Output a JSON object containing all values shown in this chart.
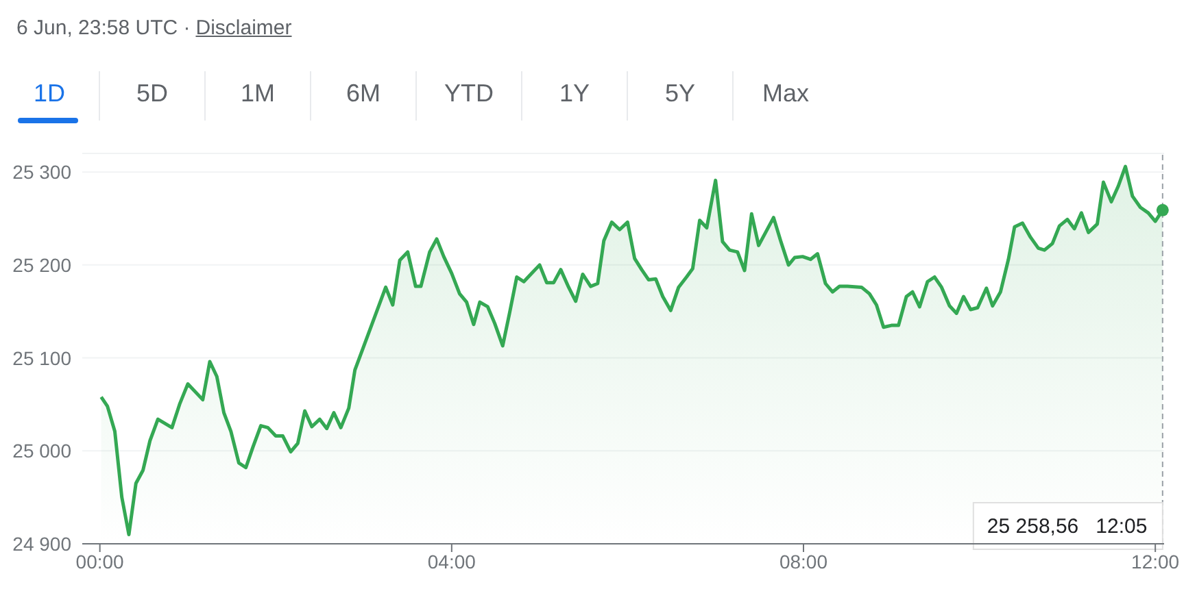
{
  "chart_data": {
    "type": "area",
    "title": "6 Jun, 23:58 UTC ·",
    "annotations": [
      "Disclaimer",
      "1D",
      "5D",
      "1M",
      "6M",
      "YTD",
      "1Y",
      "5Y",
      "Max",
      "25 258,56   12:05"
    ],
    "ref_lines": [
      {
        "axis": "x",
        "value": 12.083,
        "label": null,
        "line_style": "dashed",
        "color": "#9aa0a6"
      }
    ],
    "series": [
      {
        "color": "#34a853",
        "x": [
          0.015,
          0.086,
          0.17,
          0.25,
          0.33,
          0.41,
          0.49,
          0.57,
          0.66,
          0.82,
          0.91,
          1.0,
          1.17,
          1.25,
          1.33,
          1.41,
          1.49,
          1.58,
          1.66,
          1.74,
          1.83,
          1.91,
          2.0,
          2.08,
          2.17,
          2.25,
          2.33,
          2.41,
          2.5,
          2.58,
          2.66,
          2.74,
          2.83,
          2.9,
          3.25,
          3.33,
          3.41,
          3.5,
          3.59,
          3.65,
          3.75,
          3.83,
          3.91,
          4.0,
          4.09,
          4.17,
          4.25,
          4.32,
          4.41,
          4.49,
          4.58,
          4.66,
          4.74,
          4.82,
          4.91,
          5.0,
          5.08,
          5.16,
          5.24,
          5.33,
          5.41,
          5.49,
          5.58,
          5.66,
          5.73,
          5.82,
          5.91,
          6.0,
          6.08,
          6.16,
          6.24,
          6.32,
          6.4,
          6.49,
          6.58,
          6.67,
          6.74,
          6.82,
          6.9,
          7.0,
          7.08,
          7.16,
          7.25,
          7.33,
          7.41,
          7.49,
          7.66,
          7.74,
          7.83,
          7.9,
          7.99,
          8.08,
          8.16,
          8.25,
          8.33,
          8.41,
          8.5,
          8.66,
          8.75,
          8.83,
          8.91,
          9.0,
          9.08,
          9.17,
          9.24,
          9.32,
          9.41,
          9.49,
          9.57,
          9.66,
          9.74,
          9.82,
          9.9,
          9.98,
          10.08,
          10.15,
          10.24,
          10.33,
          10.4,
          10.49,
          10.58,
          10.67,
          10.74,
          10.83,
          10.91,
          11.0,
          11.08,
          11.16,
          11.24,
          11.34,
          11.41,
          11.5,
          11.58,
          11.66,
          11.74,
          11.83,
          11.92,
          12.0,
          12.083
        ],
        "values": [
          25058,
          25048,
          25021,
          24950,
          24910,
          24965,
          24979,
          25011,
          25034,
          25025,
          25051,
          25072,
          25055,
          25096,
          25080,
          25041,
          25021,
          24987,
          24982,
          25004,
          25027,
          25025,
          25016,
          25016,
          24999,
          25008,
          25043,
          25026,
          25034,
          25024,
          25041,
          25025,
          25046,
          25087,
          25176,
          25157,
          25205,
          25214,
          25177,
          25177,
          25214,
          25228,
          25209,
          25191,
          25169,
          25160,
          25136,
          25160,
          25155,
          25137,
          25113,
          25149,
          25187,
          25182,
          25191,
          25200,
          25181,
          25181,
          25195,
          25176,
          25161,
          25190,
          25177,
          25180,
          25226,
          25246,
          25238,
          25246,
          25207,
          25195,
          25184,
          25185,
          25166,
          25151,
          25176,
          25187,
          25196,
          25248,
          25240,
          25291,
          25225,
          25216,
          25214,
          25194,
          25255,
          25221,
          25251,
          25226,
          25200,
          25208,
          25209,
          25206,
          25212,
          25180,
          25171,
          25177,
          25177,
          25176,
          25169,
          25157,
          25133,
          25135,
          25135,
          25166,
          25171,
          25155,
          25182,
          25187,
          25176,
          25156,
          25148,
          25166,
          25152,
          25154,
          25175,
          25156,
          25171,
          25206,
          25241,
          25245,
          25230,
          25218,
          25216,
          25223,
          25242,
          25249,
          25239,
          25256,
          25235,
          25244,
          25289,
          25268,
          25285,
          25306,
          25274,
          25262,
          25256,
          25247,
          25259
        ]
      }
    ],
    "xlim": [
      -0.2,
      12.1
    ],
    "ylim": [
      24900,
      25320
    ],
    "xticks": [
      {
        "value": 0,
        "label": "00:00"
      },
      {
        "value": 4,
        "label": "04:00"
      },
      {
        "value": 8,
        "label": "08:00"
      },
      {
        "value": 12,
        "label": "12:00"
      }
    ],
    "yticks": [
      {
        "value": 24900,
        "label": "24 900"
      },
      {
        "value": 25000,
        "label": "25 000"
      },
      {
        "value": 25100,
        "label": "25 100"
      },
      {
        "value": 25200,
        "label": "25 200"
      },
      {
        "value": 25300,
        "label": "25 300"
      }
    ],
    "grid": "y",
    "marker": "none",
    "line_style": "solid"
  }
}
